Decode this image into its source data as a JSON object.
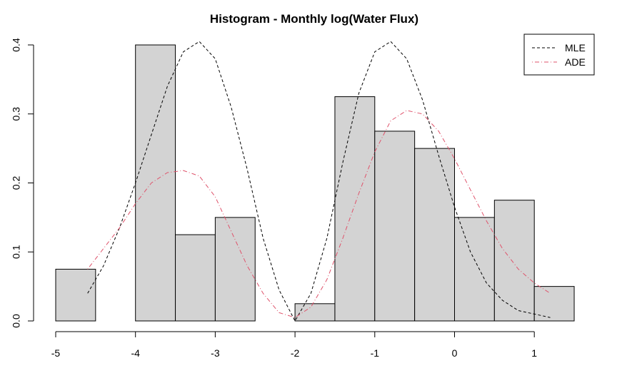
{
  "chart_data": {
    "type": "bar",
    "title": "Histogram - Monthly log(Water Flux)",
    "xlabel": "",
    "ylabel": "",
    "xlim": [
      -5,
      1.5
    ],
    "ylim": [
      0,
      0.4
    ],
    "x_ticks": [
      -5,
      -4,
      -3,
      -2,
      -1,
      0,
      1
    ],
    "x_tick_labels": [
      "-5",
      "-4",
      "-3",
      "-2",
      "-1",
      "0",
      "1"
    ],
    "y_ticks": [
      0,
      0.1,
      0.2,
      0.3,
      0.4
    ],
    "y_tick_labels": [
      "0.0",
      "0.1",
      "0.2",
      "0.3",
      "0.4"
    ],
    "bar_fill": "#d3d3d3",
    "bins": [
      {
        "from": -5.0,
        "to": -4.5,
        "density": 0.075
      },
      {
        "from": -4.5,
        "to": -4.0,
        "density": 0.0
      },
      {
        "from": -4.0,
        "to": -3.5,
        "density": 0.4
      },
      {
        "from": -3.5,
        "to": -3.0,
        "density": 0.125
      },
      {
        "from": -3.0,
        "to": -2.5,
        "density": 0.15
      },
      {
        "from": -2.5,
        "to": -2.0,
        "density": 0.0
      },
      {
        "from": -2.0,
        "to": -1.5,
        "density": 0.025
      },
      {
        "from": -1.5,
        "to": -1.0,
        "density": 0.325
      },
      {
        "from": -1.0,
        "to": -0.5,
        "density": 0.275
      },
      {
        "from": -0.5,
        "to": 0.0,
        "density": 0.25
      },
      {
        "from": 0.0,
        "to": 0.5,
        "density": 0.15
      },
      {
        "from": 0.5,
        "to": 1.0,
        "density": 0.175
      },
      {
        "from": 1.0,
        "to": 1.5,
        "density": 0.05
      }
    ],
    "series": [
      {
        "name": "MLE",
        "color": "#000000",
        "line_style": "dashed",
        "x": [
          -4.6,
          -4.4,
          -4.2,
          -4.0,
          -3.8,
          -3.6,
          -3.4,
          -3.2,
          -3.0,
          -2.8,
          -2.6,
          -2.4,
          -2.2,
          -2.0,
          -1.8,
          -1.6,
          -1.4,
          -1.2,
          -1.0,
          -0.8,
          -0.6,
          -0.4,
          -0.2,
          0.0,
          0.2,
          0.4,
          0.6,
          0.8,
          1.0,
          1.2
        ],
        "y": [
          0.04,
          0.08,
          0.135,
          0.2,
          0.27,
          0.34,
          0.39,
          0.405,
          0.38,
          0.31,
          0.22,
          0.12,
          0.045,
          0.0,
          0.04,
          0.12,
          0.23,
          0.33,
          0.39,
          0.405,
          0.38,
          0.32,
          0.24,
          0.165,
          0.1,
          0.055,
          0.03,
          0.015,
          0.01,
          0.005
        ]
      },
      {
        "name": "ADE",
        "color": "#df536b",
        "line_style": "dotdash",
        "x": [
          -4.6,
          -4.4,
          -4.2,
          -4.0,
          -3.8,
          -3.6,
          -3.4,
          -3.2,
          -3.0,
          -2.8,
          -2.6,
          -2.4,
          -2.2,
          -2.0,
          -1.8,
          -1.6,
          -1.4,
          -1.2,
          -1.0,
          -0.8,
          -0.6,
          -0.4,
          -0.2,
          0.0,
          0.2,
          0.4,
          0.6,
          0.8,
          1.0,
          1.2
        ],
        "y": [
          0.075,
          0.105,
          0.135,
          0.17,
          0.2,
          0.215,
          0.218,
          0.21,
          0.18,
          0.13,
          0.08,
          0.04,
          0.012,
          0.005,
          0.02,
          0.06,
          0.12,
          0.185,
          0.245,
          0.29,
          0.305,
          0.3,
          0.275,
          0.235,
          0.19,
          0.145,
          0.105,
          0.075,
          0.055,
          0.04
        ]
      }
    ],
    "legend": {
      "position": "top-right",
      "entries": [
        "MLE",
        "ADE"
      ]
    }
  }
}
